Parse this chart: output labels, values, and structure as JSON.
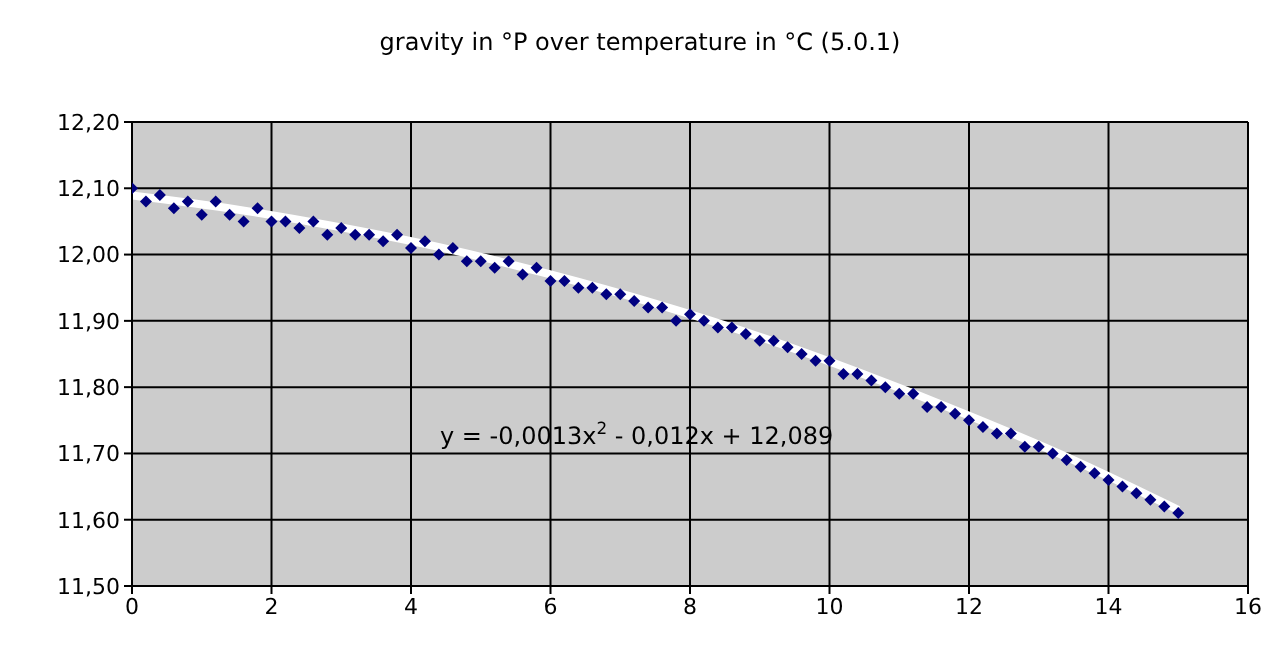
{
  "chart_data": {
    "type": "scatter",
    "title": "gravity in °P over temperature in °C (5.0.1)",
    "x": [
      0,
      0.2,
      0.4,
      0.6,
      0.8,
      1.0,
      1.2,
      1.4,
      1.6,
      1.8,
      2.0,
      2.2,
      2.4,
      2.6,
      2.8,
      3.0,
      3.2,
      3.4,
      3.6,
      3.8,
      4.0,
      4.2,
      4.4,
      4.6,
      4.8,
      5.0,
      5.2,
      5.4,
      5.6,
      5.8,
      6.0,
      6.2,
      6.4,
      6.6,
      6.8,
      7.0,
      7.2,
      7.4,
      7.6,
      7.8,
      8.0,
      8.2,
      8.4,
      8.6,
      8.8,
      9.0,
      9.2,
      9.4,
      9.6,
      9.8,
      10.0,
      10.2,
      10.4,
      10.6,
      10.8,
      11.0,
      11.2,
      11.4,
      11.6,
      11.8,
      12.0,
      12.2,
      12.4,
      12.6,
      12.8,
      13.0,
      13.2,
      13.4,
      13.6,
      13.8,
      14.0,
      14.2,
      14.4,
      14.6,
      14.8,
      15.0
    ],
    "series": [
      {
        "color": "#000080",
        "marker": "diamond",
        "values": [
          12.1,
          12.08,
          12.09,
          12.07,
          12.08,
          12.06,
          12.08,
          12.06,
          12.05,
          12.07,
          12.05,
          12.05,
          12.04,
          12.05,
          12.03,
          12.04,
          12.03,
          12.03,
          12.02,
          12.03,
          12.01,
          12.02,
          12.0,
          12.01,
          11.99,
          11.99,
          11.98,
          11.99,
          11.97,
          11.98,
          11.96,
          11.96,
          11.95,
          11.95,
          11.94,
          11.94,
          11.93,
          11.92,
          11.92,
          11.9,
          11.91,
          11.9,
          11.89,
          11.89,
          11.88,
          11.87,
          11.87,
          11.86,
          11.85,
          11.84,
          11.84,
          11.82,
          11.82,
          11.81,
          11.8,
          11.79,
          11.79,
          11.77,
          11.77,
          11.76,
          11.75,
          11.74,
          11.73,
          11.73,
          11.71,
          11.71,
          11.7,
          11.69,
          11.68,
          11.67,
          11.66,
          11.65,
          11.64,
          11.63,
          11.62,
          11.61
        ]
      },
      {
        "type": "line",
        "color": "#ffffff",
        "marker": "none",
        "line_style": "solid",
        "x": [
          0,
          1.5,
          3,
          4.5,
          6,
          7.5,
          9,
          10.5,
          12,
          13.5,
          15
        ],
        "values": [
          12.089,
          12.068,
          12.041,
          12.009,
          11.97,
          11.926,
          11.876,
          11.819,
          11.757,
          11.69,
          11.615
        ]
      }
    ],
    "xlim": [
      0,
      16
    ],
    "xticks": [
      0,
      2,
      4,
      6,
      8,
      10,
      12,
      14,
      16
    ],
    "ylim": [
      11.5,
      12.2
    ],
    "yticks": [
      {
        "value": 11.5,
        "label": "11,50"
      },
      {
        "value": 11.6,
        "label": "11,60"
      },
      {
        "value": 11.7,
        "label": "11,70"
      },
      {
        "value": 11.8,
        "label": "11,80"
      },
      {
        "value": 11.9,
        "label": "11,90"
      },
      {
        "value": 12.0,
        "label": "12,00"
      },
      {
        "value": 12.1,
        "label": "12,10"
      },
      {
        "value": 12.2,
        "label": "12,20"
      }
    ],
    "grid": true,
    "annotations": [
      "y = -0,0013x$^{2}$ - 0,012x + 12,089"
    ]
  }
}
